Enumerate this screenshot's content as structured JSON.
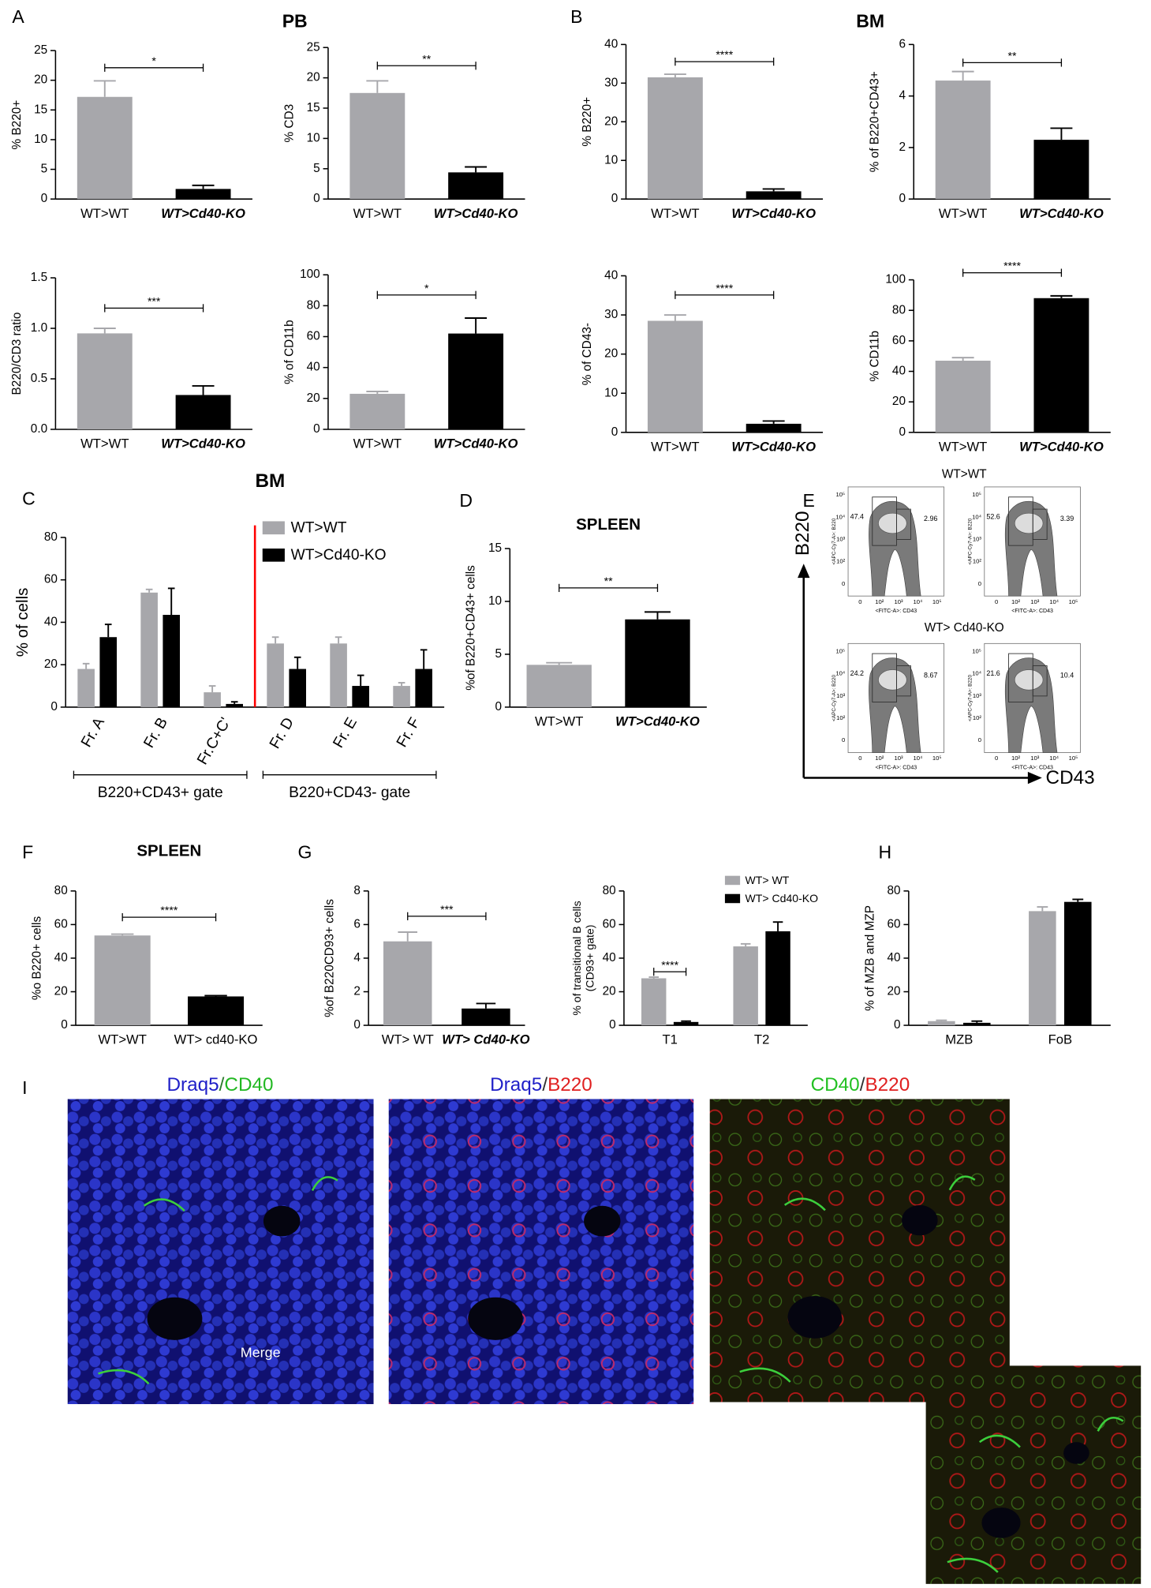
{
  "panels": [
    "A",
    "B",
    "C",
    "D",
    "E",
    "F",
    "G",
    "H",
    "I"
  ],
  "sections": [
    "PB",
    "BM"
  ],
  "chart_data": [
    {
      "type": "bar",
      "ylabel": "% B220+",
      "categories": [
        "WT>WT",
        "WT>Cd40-KO"
      ],
      "values": [
        17.2,
        1.7
      ],
      "errors": [
        2.7,
        0.6
      ],
      "colors": [
        "#a7a7ab",
        "#000000"
      ],
      "ylim": [
        0,
        25
      ],
      "yticks": [
        0,
        5,
        10,
        15,
        20,
        25
      ],
      "annotation": "*"
    },
    {
      "type": "bar",
      "ylabel": "% CD3",
      "categories": [
        "WT>WT",
        "WT>Cd40-KO"
      ],
      "values": [
        17.5,
        4.4
      ],
      "errors": [
        2.0,
        0.9
      ],
      "colors": [
        "#a7a7ab",
        "#000000"
      ],
      "ylim": [
        0,
        25
      ],
      "yticks": [
        0,
        5,
        10,
        15,
        20,
        25
      ],
      "annotation": "**"
    },
    {
      "type": "bar",
      "ylabel": "% B220+",
      "categories": [
        "WT>WT",
        "WT>Cd40-KO"
      ],
      "values": [
        31.5,
        2.0
      ],
      "errors": [
        0.8,
        0.6
      ],
      "colors": [
        "#a7a7ab",
        "#000000"
      ],
      "ylim": [
        0,
        40
      ],
      "yticks": [
        0,
        10,
        20,
        30,
        40
      ],
      "annotation": "****"
    },
    {
      "type": "bar",
      "ylabel": "% of B220+CD43+",
      "categories": [
        "WT>WT",
        "WT>Cd40-KO"
      ],
      "values": [
        4.6,
        2.3
      ],
      "errors": [
        0.35,
        0.45
      ],
      "colors": [
        "#a7a7ab",
        "#000000"
      ],
      "ylim": [
        0,
        6
      ],
      "yticks": [
        0,
        2,
        4,
        6
      ],
      "annotation": "**"
    },
    {
      "type": "bar",
      "ylabel": "B220/CD3 ratio",
      "categories": [
        "WT>WT",
        "WT>Cd40-KO"
      ],
      "values": [
        0.95,
        0.34
      ],
      "errors": [
        0.05,
        0.09
      ],
      "colors": [
        "#a7a7ab",
        "#000000"
      ],
      "ylim": [
        0,
        1.5
      ],
      "yticks": [
        {
          "value": 0,
          "label": "0.0"
        },
        0.5,
        {
          "value": 1,
          "label": "1.0"
        },
        1.5
      ],
      "annotation": "***"
    },
    {
      "type": "bar",
      "ylabel": "% of CD11b",
      "categories": [
        "WT>WT",
        "WT>Cd40-KO"
      ],
      "values": [
        23,
        62
      ],
      "errors": [
        1.5,
        10
      ],
      "colors": [
        "#a7a7ab",
        "#000000"
      ],
      "ylim": [
        0,
        100
      ],
      "yticks": [
        0,
        20,
        40,
        60,
        80,
        100
      ],
      "annotation": "*"
    },
    {
      "type": "bar",
      "ylabel": "% of CD43-",
      "categories": [
        "WT>WT",
        "WT>Cd40-KO"
      ],
      "values": [
        28.5,
        2.2
      ],
      "errors": [
        1.5,
        0.7
      ],
      "colors": [
        "#a7a7ab",
        "#000000"
      ],
      "ylim": [
        0,
        40
      ],
      "yticks": [
        0,
        10,
        20,
        30,
        40
      ],
      "annotation": "****"
    },
    {
      "type": "bar",
      "ylabel": "% CD11b",
      "categories": [
        "WT>WT",
        "WT>Cd40-KO"
      ],
      "values": [
        47,
        88
      ],
      "errors": [
        2,
        1.5
      ],
      "colors": [
        "#a7a7ab",
        "#000000"
      ],
      "ylim": [
        0,
        100
      ],
      "yticks": [
        0,
        20,
        40,
        60,
        80,
        100
      ],
      "annotation": "****"
    },
    {
      "type": "grouped_bar",
      "title": "BM",
      "ylabel": "% of  cells",
      "categories": [
        "Fr. A",
        "Fr. B",
        "Fr.C+C'",
        "Fr. D",
        "Fr. E",
        "Fr. F"
      ],
      "series": [
        {
          "name": "WT>WT",
          "color": "#a7a7ab",
          "values": [
            18,
            54,
            7,
            30,
            30,
            10
          ],
          "errors": [
            2.5,
            1.5,
            3,
            3,
            3,
            1.5
          ]
        },
        {
          "name": "WT>Cd40-KO",
          "color": "#000000",
          "values": [
            33,
            43.5,
            1.5,
            18,
            10,
            18
          ],
          "errors": [
            6,
            12.5,
            1,
            5.5,
            5,
            9
          ]
        }
      ],
      "ylim": [
        0,
        80
      ],
      "yticks": [
        0,
        20,
        40,
        60,
        80
      ],
      "legend": "upper right",
      "divider_color": "#ff0000",
      "gate_labels": [
        "B220+CD43+ gate",
        "B220+CD43- gate"
      ]
    },
    {
      "type": "bar",
      "title": "SPLEEN",
      "ylabel": "%of B220+CD43+ cells",
      "categories": [
        "WT>WT",
        "WT>Cd40-KO"
      ],
      "values": [
        4.0,
        8.3
      ],
      "errors": [
        0.2,
        0.7
      ],
      "colors": [
        "#a7a7ab",
        "#000000"
      ],
      "ylim": [
        0,
        15
      ],
      "yticks": [
        0,
        5,
        10,
        15
      ],
      "annotation": "**"
    },
    {
      "type": "bar",
      "title": "SPLEEN",
      "ylabel": "%o B220+ cells",
      "categories": [
        "WT>WT",
        "WT> cd40-KO"
      ],
      "values": [
        53.5,
        17.2
      ],
      "errors": [
        0.8,
        0.5
      ],
      "colors": [
        "#a7a7ab",
        "#000000"
      ],
      "ylim": [
        0,
        80
      ],
      "yticks": [
        0,
        20,
        40,
        60,
        80
      ],
      "annotation": "****"
    },
    {
      "type": "bar",
      "ylabel": "%of B220CD93+ cells",
      "categories": [
        "WT> WT",
        "WT> Cd40-KO"
      ],
      "values": [
        5.0,
        1.0
      ],
      "errors": [
        0.55,
        0.3
      ],
      "colors": [
        "#a7a7ab",
        "#000000"
      ],
      "ylim": [
        0,
        8
      ],
      "yticks": [
        0,
        2,
        4,
        6,
        8
      ],
      "annotation": "***"
    },
    {
      "type": "grouped_bar",
      "ylabel": [
        "% of transitional B cells",
        "(CD93+ gate)"
      ],
      "categories": [
        "T1",
        "T2"
      ],
      "series": [
        {
          "name": "WT> WT",
          "color": "#a7a7ab",
          "values": [
            28,
            47
          ],
          "errors": [
            0.7,
            1.5
          ]
        },
        {
          "name": "WT> Cd40-KO",
          "color": "#000000",
          "values": [
            2,
            56
          ],
          "errors": [
            0.5,
            5.5
          ]
        }
      ],
      "ylim": [
        0,
        80
      ],
      "yticks": [
        0,
        20,
        40,
        60,
        80
      ],
      "legend": "upper right",
      "annotation": "****"
    },
    {
      "type": "grouped_bar",
      "ylabel": "% of MZB and MZP",
      "categories": [
        "MZB",
        "FoB"
      ],
      "series": [
        {
          "color": "#a7a7ab",
          "values": [
            2.5,
            68
          ],
          "errors": [
            0.5,
            2.5
          ]
        },
        {
          "color": "#000000",
          "values": [
            1.5,
            73.5
          ],
          "errors": [
            1,
            1.5
          ]
        }
      ],
      "ylim": [
        0,
        80
      ],
      "yticks": [
        0,
        20,
        40,
        60,
        80
      ]
    }
  ],
  "flow": {
    "title_top": "WT>WT",
    "title_bottom": "WT> Cd40-KO",
    "y_axis": "B220",
    "x_axis": "CD43",
    "plot_ylabel": "<APC-Cy7-A>: B220",
    "plot_xlabel": "<FITC-A>: CD43",
    "ticks": [
      "0",
      "10²",
      "10³",
      "10⁴",
      "10⁵"
    ],
    "gates": [
      [
        "47.4",
        "2.96"
      ],
      [
        "52.6",
        "3.39"
      ],
      [
        "24.2",
        "8.67"
      ],
      [
        "21.6",
        "10.4"
      ]
    ]
  },
  "images": {
    "titles": [
      [
        "Draq5",
        "/",
        "CD40"
      ],
      [
        "Draq5",
        "/",
        "B220"
      ],
      [
        "CD40",
        "/",
        "B220"
      ]
    ],
    "merge_label": "Merge"
  }
}
